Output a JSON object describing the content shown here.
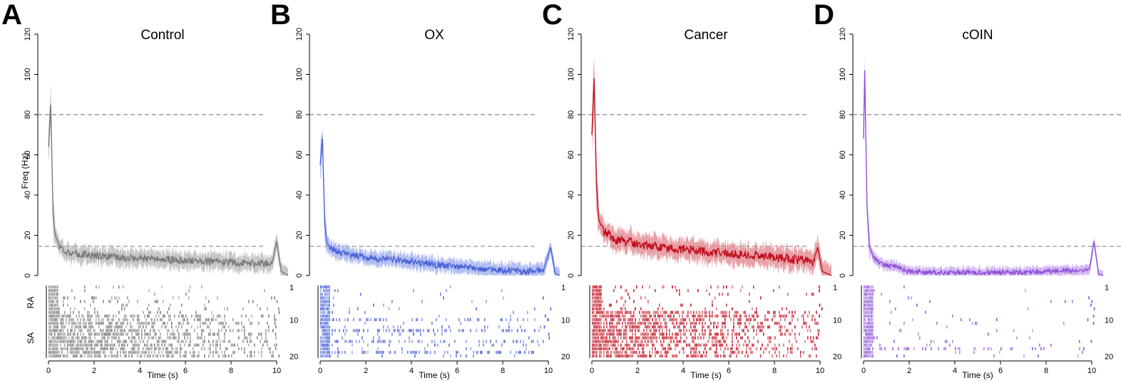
{
  "figure": {
    "panels": [
      {
        "letter": "A",
        "title": "Control",
        "color": "#7a7a7a",
        "band": "#b4b4b4"
      },
      {
        "letter": "B",
        "title": "OX",
        "color": "#4a62d8",
        "band": "#9aa8ee"
      },
      {
        "letter": "C",
        "title": "Cancer",
        "color": "#c0101f",
        "band": "#e0808a"
      },
      {
        "letter": "D",
        "title": "cOIN",
        "color": "#8e4fd6",
        "band": "#c3a0ee"
      }
    ]
  },
  "chart_data": {
    "type": "line",
    "ylabel": "Freq (Hz)",
    "xlabel": "Time (s)",
    "xlim": [
      0,
      10.5
    ],
    "ylim": [
      0,
      120
    ],
    "y_ticks": [
      0,
      20,
      40,
      60,
      80,
      100,
      120
    ],
    "x_ticks": [
      0,
      2,
      4,
      6,
      8,
      10
    ],
    "reference_lines": [
      80,
      14.5
    ],
    "raster_ylabels": [
      "RA",
      "SA"
    ],
    "raster_row_ticks": [
      "1",
      "10",
      "20"
    ],
    "raster_rows": 20,
    "series": [
      {
        "name": "Control",
        "points": [
          [
            0,
            64
          ],
          [
            0.1,
            85
          ],
          [
            0.2,
            30
          ],
          [
            0.3,
            20
          ],
          [
            0.5,
            14
          ],
          [
            0.8,
            12
          ],
          [
            1,
            11
          ],
          [
            2,
            10
          ],
          [
            3,
            9
          ],
          [
            4,
            8.5
          ],
          [
            5,
            8
          ],
          [
            6,
            7.5
          ],
          [
            7,
            7
          ],
          [
            8,
            6.5
          ],
          [
            9,
            6
          ],
          [
            9.8,
            6
          ],
          [
            10,
            17
          ],
          [
            10.2,
            2
          ],
          [
            10.5,
            0
          ]
        ],
        "sd": 4
      },
      {
        "name": "OX",
        "points": [
          [
            0,
            55
          ],
          [
            0.1,
            68
          ],
          [
            0.2,
            25
          ],
          [
            0.3,
            16
          ],
          [
            0.5,
            13
          ],
          [
            1,
            11
          ],
          [
            2,
            9
          ],
          [
            3,
            8
          ],
          [
            4,
            7
          ],
          [
            5,
            5.5
          ],
          [
            6,
            4.5
          ],
          [
            7,
            3.5
          ],
          [
            8,
            2.5
          ],
          [
            9,
            2
          ],
          [
            9.8,
            3
          ],
          [
            10.1,
            14
          ],
          [
            10.3,
            1
          ],
          [
            10.5,
            0
          ]
        ],
        "sd": 3.5
      },
      {
        "name": "Cancer",
        "points": [
          [
            0,
            70
          ],
          [
            0.1,
            98
          ],
          [
            0.2,
            45
          ],
          [
            0.3,
            28
          ],
          [
            0.5,
            22
          ],
          [
            1,
            18
          ],
          [
            2,
            16
          ],
          [
            3,
            14
          ],
          [
            4,
            13
          ],
          [
            5,
            12
          ],
          [
            6,
            11
          ],
          [
            7,
            10
          ],
          [
            8,
            9
          ],
          [
            9,
            8
          ],
          [
            9.7,
            7
          ],
          [
            9.9,
            14
          ],
          [
            10.1,
            2
          ],
          [
            10.5,
            0
          ]
        ],
        "sd": 5
      },
      {
        "name": "cOIN",
        "points": [
          [
            0,
            68
          ],
          [
            0.05,
            102
          ],
          [
            0.15,
            35
          ],
          [
            0.25,
            15
          ],
          [
            0.4,
            10
          ],
          [
            0.7,
            6
          ],
          [
            1,
            5
          ],
          [
            1.5,
            4
          ],
          [
            2,
            2
          ],
          [
            3,
            1.5
          ],
          [
            4,
            1.5
          ],
          [
            5,
            1.5
          ],
          [
            6,
            1.5
          ],
          [
            7,
            1.5
          ],
          [
            8,
            2
          ],
          [
            9,
            2.5
          ],
          [
            9.9,
            3
          ],
          [
            10.1,
            17
          ],
          [
            10.3,
            0.5
          ],
          [
            10.5,
            0
          ]
        ],
        "sd": 2.5
      }
    ]
  }
}
